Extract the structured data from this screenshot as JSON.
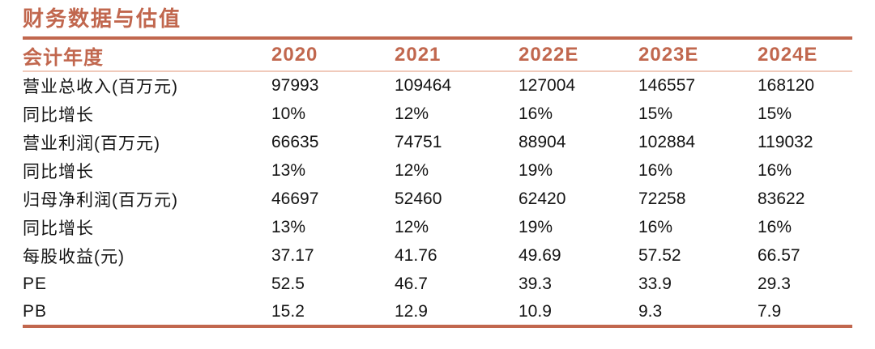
{
  "title": "财务数据与估值",
  "colors": {
    "accent": "#C1674E",
    "light_rule": "#F0CABB",
    "body_text": "#141414"
  },
  "table": {
    "header": [
      "会计年度",
      "2020",
      "2021",
      "2022E",
      "2023E",
      "2024E"
    ],
    "rows": [
      {
        "label": "营业总收入(百万元)",
        "values": [
          "97993",
          "109464",
          "127004",
          "146557",
          "168120"
        ]
      },
      {
        "label": "同比增长",
        "values": [
          "10%",
          "12%",
          "16%",
          "15%",
          "15%"
        ]
      },
      {
        "label": "营业利润(百万元)",
        "values": [
          "66635",
          "74751",
          "88904",
          "102884",
          "119032"
        ]
      },
      {
        "label": "同比增长",
        "values": [
          "13%",
          "12%",
          "19%",
          "16%",
          "16%"
        ]
      },
      {
        "label": "归母净利润(百万元)",
        "values": [
          "46697",
          "52460",
          "62420",
          "72258",
          "83622"
        ]
      },
      {
        "label": "同比增长",
        "values": [
          "13%",
          "12%",
          "19%",
          "16%",
          "16%"
        ]
      },
      {
        "label": "每股收益(元)",
        "values": [
          "37.17",
          "41.76",
          "49.69",
          "57.52",
          "66.57"
        ]
      },
      {
        "label": "PE",
        "values": [
          "52.5",
          "46.7",
          "39.3",
          "33.9",
          "29.3"
        ]
      },
      {
        "label": "PB",
        "values": [
          "15.2",
          "12.9",
          "10.9",
          "9.3",
          "7.9"
        ]
      }
    ]
  },
  "chart_data": {
    "type": "table",
    "title": "财务数据与估值",
    "columns": [
      "会计年度",
      "2020",
      "2021",
      "2022E",
      "2023E",
      "2024E"
    ],
    "rows": [
      [
        "营业总收入(百万元)",
        "97993",
        "109464",
        "127004",
        "146557",
        "168120"
      ],
      [
        "同比增长",
        "10%",
        "12%",
        "16%",
        "15%",
        "15%"
      ],
      [
        "营业利润(百万元)",
        "66635",
        "74751",
        "88904",
        "102884",
        "119032"
      ],
      [
        "同比增长",
        "13%",
        "12%",
        "19%",
        "16%",
        "16%"
      ],
      [
        "归母净利润(百万元)",
        "46697",
        "52460",
        "62420",
        "72258",
        "83622"
      ],
      [
        "同比增长",
        "13%",
        "12%",
        "19%",
        "16%",
        "16%"
      ],
      [
        "每股收益(元)",
        "37.17",
        "41.76",
        "49.69",
        "57.52",
        "66.57"
      ],
      [
        "PE",
        "52.5",
        "46.7",
        "39.3",
        "33.9",
        "29.3"
      ],
      [
        "PB",
        "15.2",
        "12.9",
        "10.9",
        "9.3",
        "7.9"
      ]
    ]
  }
}
